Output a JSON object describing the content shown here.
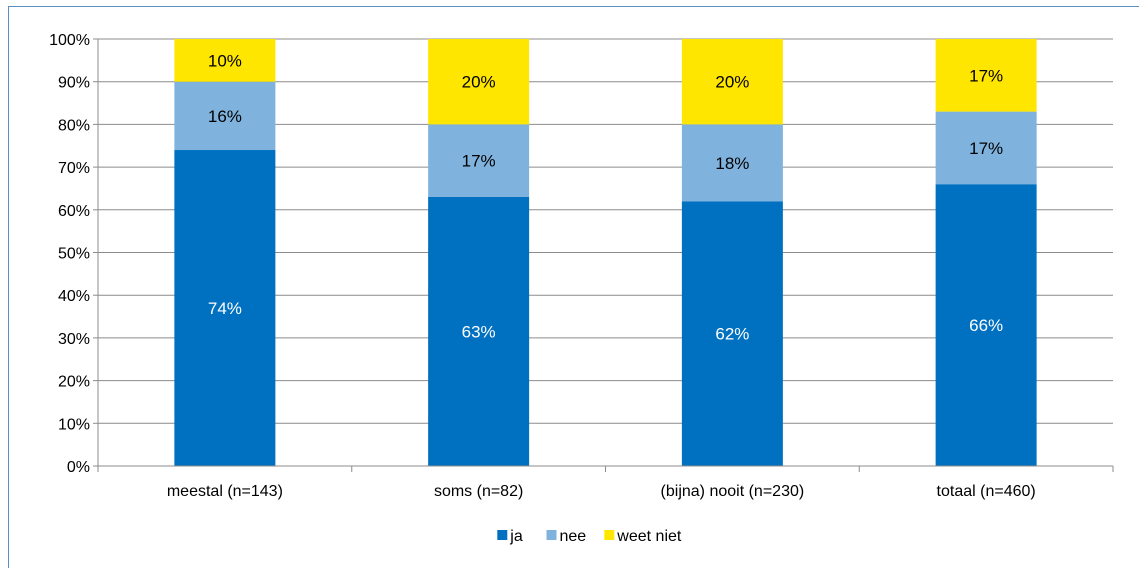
{
  "chart_data": {
    "type": "bar",
    "stacked": true,
    "title_clipped": "...,                              (... ... ... ...)",
    "categories": [
      "meestal (n=143)",
      "soms (n=82)",
      "(bijna) nooit (n=230)",
      "totaal (n=460)"
    ],
    "series": [
      {
        "name": "ja",
        "values": [
          74,
          63,
          62,
          66
        ],
        "labels": [
          "74%",
          "63%",
          "62%",
          "66%"
        ],
        "color": "#0070c0",
        "label_color": "#ffffff"
      },
      {
        "name": "nee",
        "values": [
          16,
          17,
          18,
          17
        ],
        "labels": [
          "16%",
          "17%",
          "18%",
          "17%"
        ],
        "color": "#7fb3de",
        "label_color": "#000000"
      },
      {
        "name": "weet niet",
        "values": [
          10,
          20,
          20,
          17
        ],
        "labels": [
          "10%",
          "20%",
          "20%",
          "17%"
        ],
        "color": "#ffe600",
        "label_color": "#000000"
      }
    ],
    "yticks": [
      "0%",
      "10%",
      "20%",
      "30%",
      "40%",
      "50%",
      "60%",
      "70%",
      "80%",
      "90%",
      "100%"
    ],
    "ylim": [
      0,
      100
    ],
    "grid": true,
    "legend_position": "bottom"
  }
}
